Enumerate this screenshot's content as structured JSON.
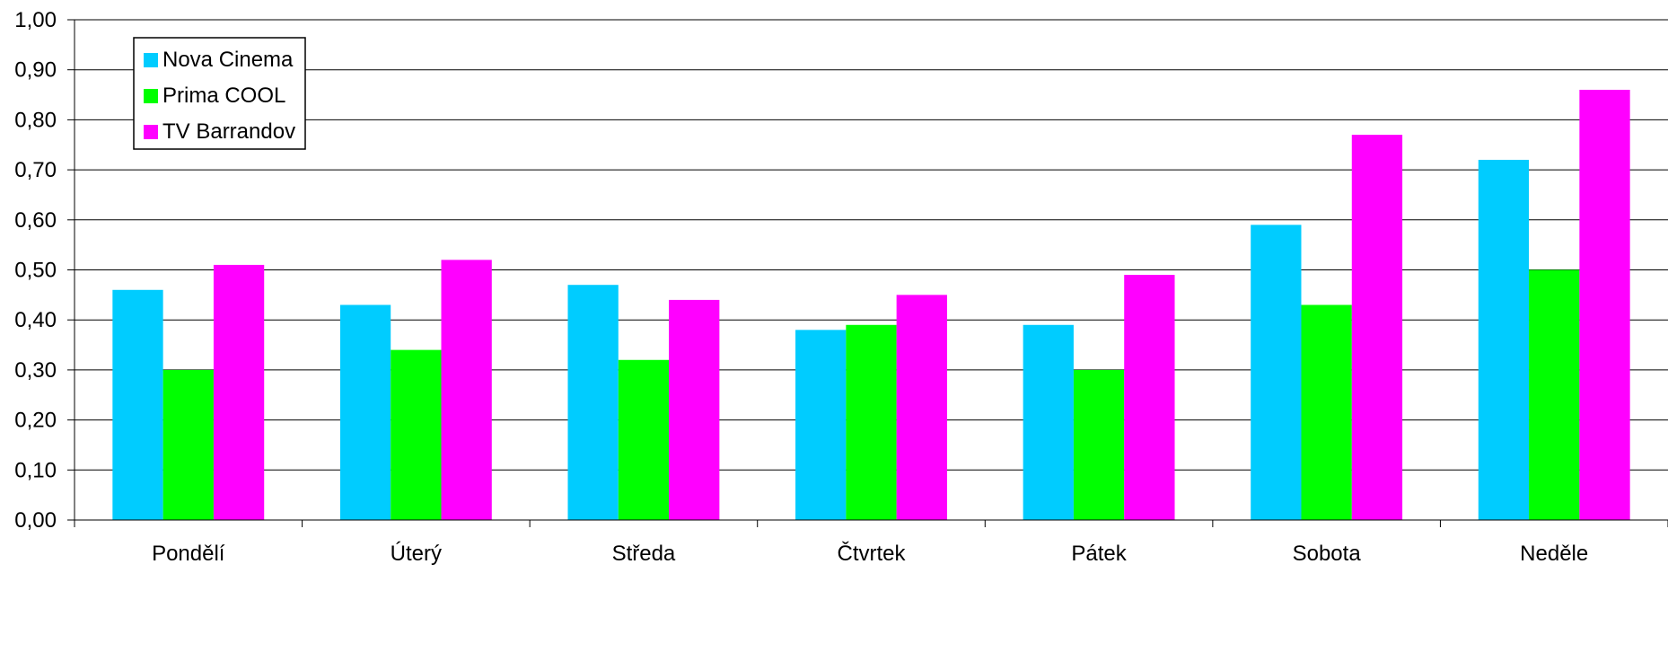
{
  "chart_data": {
    "type": "bar",
    "categories": [
      "Pondělí",
      "Úterý",
      "Středa",
      "Čtvrtek",
      "Pátek",
      "Sobota",
      "Neděle"
    ],
    "series": [
      {
        "name": "Nova Cinema",
        "color": "#00ccff",
        "values": [
          0.46,
          0.43,
          0.47,
          0.38,
          0.39,
          0.59,
          0.72
        ]
      },
      {
        "name": "Prima COOL",
        "color": "#00ff00",
        "values": [
          0.3,
          0.34,
          0.32,
          0.39,
          0.3,
          0.43,
          0.5
        ]
      },
      {
        "name": "TV Barrandov",
        "color": "#ff00ff",
        "values": [
          0.51,
          0.52,
          0.44,
          0.45,
          0.49,
          0.77,
          0.86
        ]
      }
    ],
    "ylim": [
      0,
      1.0
    ],
    "yticks": [
      "0,00",
      "0,10",
      "0,20",
      "0,30",
      "0,40",
      "0,50",
      "0,60",
      "0,70",
      "0,80",
      "0,90",
      "1,00"
    ],
    "grid": true,
    "legend_position": "top-left",
    "title": "",
    "xlabel": "",
    "ylabel": ""
  }
}
